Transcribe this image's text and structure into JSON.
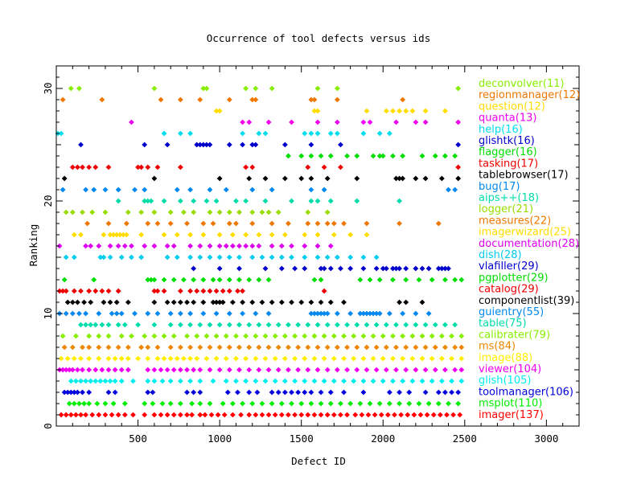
{
  "chart_data": {
    "type": "scatter",
    "title": "Occurrence of tool defects versus ids",
    "xlabel": "Defect ID",
    "ylabel": "Ranking",
    "xlim": [
      0,
      3200
    ],
    "ylim": [
      0,
      32
    ],
    "x_ticks": [
      500,
      1000,
      1500,
      2000,
      2500,
      3000
    ],
    "y_ticks": [
      0,
      10,
      20,
      30
    ],
    "legend_position": "right",
    "series": [
      {
        "name": "imager(137)",
        "rank": 1,
        "color": "#ff0000",
        "x": [
          30,
          60,
          90,
          120,
          150,
          180,
          220,
          260,
          300,
          340,
          380,
          420,
          470,
          540,
          600,
          640,
          680,
          720,
          760,
          800,
          830,
          880,
          910,
          950,
          990,
          1030,
          1080,
          1130,
          1180,
          1220,
          1260,
          1300,
          1340,
          1380,
          1420,
          1460,
          1500,
          1540,
          1580,
          1620,
          1660,
          1700,
          1740,
          1780,
          1830,
          1870,
          1910,
          1950,
          1990,
          2030,
          2070,
          2110,
          2150,
          2190,
          2230,
          2270,
          2310,
          2350,
          2390,
          2430,
          2470
        ]
      },
      {
        "name": "msplot(110)",
        "rank": 2,
        "color": "#00ee00",
        "x": [
          80,
          110,
          140,
          170,
          200,
          250,
          300,
          350,
          420,
          540,
          590,
          650,
          700,
          760,
          830,
          880,
          940,
          1020,
          1080,
          1140,
          1200,
          1260,
          1320,
          1380,
          1440,
          1500,
          1560,
          1620,
          1680,
          1740,
          1800,
          1860,
          1920,
          1980,
          2040,
          2100,
          2160,
          2220,
          2280,
          2340,
          2400,
          2460
        ]
      },
      {
        "name": "toolmanager(106)",
        "rank": 3,
        "color": "#0000dd",
        "x": [
          50,
          70,
          90,
          110,
          130,
          160,
          200,
          320,
          360,
          560,
          590,
          800,
          840,
          880,
          1050,
          1110,
          1180,
          1230,
          1320,
          1360,
          1400,
          1440,
          1480,
          1520,
          1560,
          1620,
          1680,
          1760,
          1880,
          2040,
          2100,
          2160,
          2260,
          2340,
          2380,
          2420,
          2460
        ]
      },
      {
        "name": "glish(105)",
        "rank": 4,
        "color": "#00eeee",
        "x": [
          90,
          120,
          150,
          180,
          210,
          240,
          270,
          300,
          330,
          360,
          400,
          470,
          560,
          600,
          650,
          700,
          760,
          820,
          880,
          960,
          1040,
          1100,
          1160,
          1220,
          1280,
          1340,
          1400,
          1460,
          1520,
          1580,
          1640,
          1700,
          1760,
          1820,
          1880,
          1940,
          2000,
          2060,
          2120,
          2180,
          2240,
          2300,
          2360,
          2420,
          2480
        ]
      },
      {
        "name": "viewer(104)",
        "rank": 5,
        "color": "#ee00ee",
        "x": [
          20,
          40,
          60,
          80,
          100,
          130,
          160,
          200,
          240,
          280,
          320,
          360,
          400,
          440,
          560,
          600,
          640,
          680,
          720,
          760,
          800,
          840,
          880,
          940,
          1000,
          1060,
          1120,
          1180,
          1240,
          1300,
          1360,
          1420,
          1480,
          1540,
          1600,
          1660,
          1720,
          1780,
          1840,
          1900,
          1960,
          2020,
          2080,
          2140,
          2200,
          2260,
          2320,
          2380,
          2440,
          2480
        ]
      },
      {
        "name": "image(88)",
        "rank": 6,
        "color": "#ffee00",
        "x": [
          30,
          70,
          110,
          150,
          200,
          260,
          320,
          360,
          400,
          440,
          500,
          560,
          620,
          660,
          700,
          740,
          780,
          820,
          860,
          920,
          980,
          1040,
          1100,
          1160,
          1220,
          1280,
          1340,
          1400,
          1460,
          1520,
          1580,
          1640,
          1700,
          1760,
          1820,
          1880,
          1940,
          2000,
          2060,
          2120,
          2180,
          2240,
          2300,
          2360,
          2420,
          2480
        ]
      },
      {
        "name": "ms(84)",
        "rank": 7,
        "color": "#ee8800",
        "x": [
          50,
          100,
          160,
          200,
          260,
          320,
          380,
          440,
          520,
          560,
          620,
          700,
          760,
          820,
          880,
          940,
          1000,
          1060,
          1120,
          1180,
          1240,
          1300,
          1360,
          1420,
          1480,
          1540,
          1600,
          1660,
          1720,
          1780,
          1840,
          1900,
          1960,
          2020,
          2080,
          2140,
          2200,
          2260,
          2320,
          2380,
          2440,
          2480
        ]
      },
      {
        "name": "calibrater(79)",
        "rank": 8,
        "color": "#88ee00",
        "x": [
          40,
          120,
          200,
          260,
          320,
          400,
          460,
          540,
          600,
          660,
          720,
          800,
          860,
          920,
          980,
          1040,
          1100,
          1160,
          1220,
          1280,
          1340,
          1400,
          1460,
          1520,
          1580,
          1640,
          1700,
          1760,
          1820,
          1880,
          1940,
          2000,
          2060,
          2120,
          2180,
          2240,
          2300,
          2360,
          2420,
          2480
        ]
      },
      {
        "name": "table(75)",
        "rank": 9,
        "color": "#00ddaa",
        "x": [
          150,
          180,
          210,
          240,
          280,
          320,
          380,
          420,
          500,
          600,
          700,
          760,
          820,
          880,
          940,
          1000,
          1060,
          1120,
          1180,
          1240,
          1300,
          1360,
          1420,
          1480,
          1540,
          1600,
          1660,
          1720,
          1780,
          1840,
          1900,
          1960,
          2020,
          2080,
          2140,
          2200,
          2260,
          2320,
          2380,
          2440
        ]
      },
      {
        "name": "guientry(55)",
        "rank": 10,
        "color": "#0088ee",
        "x": [
          20,
          60,
          100,
          140,
          180,
          260,
          340,
          370,
          400,
          480,
          560,
          620,
          700,
          760,
          820,
          900,
          980,
          1060,
          1140,
          1220,
          1300,
          1560,
          1580,
          1600,
          1620,
          1640,
          1660,
          1720,
          1800,
          1860,
          1880,
          1900,
          1920,
          1940,
          1960,
          1980,
          2040,
          2120,
          2200,
          2280
        ]
      },
      {
        "name": "componentlist(39)",
        "rank": 11,
        "color": "#000000",
        "x": [
          70,
          100,
          130,
          170,
          210,
          290,
          330,
          370,
          440,
          600,
          680,
          720,
          760,
          800,
          840,
          900,
          960,
          980,
          1000,
          1020,
          1080,
          1140,
          1200,
          1260,
          1320,
          1380,
          1440,
          1500,
          1560,
          1620,
          1680,
          1760,
          2100,
          2140,
          2240
        ]
      },
      {
        "name": "catalog(29)",
        "rank": 12,
        "color": "#ee0000",
        "x": [
          20,
          40,
          60,
          110,
          150,
          200,
          240,
          280,
          320,
          380,
          600,
          620,
          660,
          760,
          820,
          860,
          900,
          940,
          980,
          1020,
          1060,
          1110,
          1140,
          1640
        ]
      },
      {
        "name": "pgplotter(29)",
        "rank": 13,
        "color": "#00dd00",
        "x": [
          50,
          230,
          560,
          580,
          600,
          660,
          720,
          780,
          840,
          900,
          960,
          1000,
          1060,
          1120,
          1180,
          1240,
          1300,
          1580,
          1620,
          1860,
          1920,
          1980,
          2060,
          2140,
          2220,
          2300,
          2380,
          2440,
          2480
        ]
      },
      {
        "name": "vlafiller(29)",
        "rank": 14,
        "color": "#0000cc",
        "x": [
          840,
          1000,
          1120,
          1280,
          1380,
          1460,
          1520,
          1620,
          1640,
          1680,
          1740,
          1800,
          1880,
          1960,
          2000,
          2020,
          2060,
          2080,
          2100,
          2140,
          2200,
          2240,
          2280,
          2340,
          2360,
          2380,
          2400
        ]
      },
      {
        "name": "dish(28)",
        "rank": 15,
        "color": "#00ccee",
        "x": [
          60,
          110,
          270,
          290,
          330,
          400,
          460,
          520,
          680,
          740,
          820,
          880,
          940,
          1000,
          1060,
          1120,
          1200,
          1260,
          1320,
          1380,
          1440,
          1520,
          1600,
          1660,
          1720,
          1800,
          1880,
          1960
        ]
      },
      {
        "name": "documentation(28)",
        "rank": 16,
        "color": "#dd00ee",
        "x": [
          20,
          180,
          210,
          260,
          330,
          380,
          420,
          460,
          540,
          600,
          680,
          720,
          820,
          880,
          940,
          1000,
          1040,
          1080,
          1120,
          1160,
          1200,
          1240,
          1320,
          1380,
          1440,
          1520,
          1600,
          1680
        ]
      },
      {
        "name": "imagerwizard(25)",
        "rank": 17,
        "color": "#ffdd00",
        "x": [
          110,
          150,
          290,
          330,
          350,
          370,
          390,
          410,
          430,
          520,
          660,
          740,
          820,
          900,
          1000,
          1080,
          1160,
          1240,
          1320,
          1400,
          1520,
          1600,
          1700,
          1800,
          1900
        ]
      },
      {
        "name": "measures(22)",
        "rank": 18,
        "color": "#ee7700",
        "x": [
          190,
          320,
          430,
          560,
          620,
          700,
          800,
          900,
          960,
          1060,
          1100,
          1200,
          1320,
          1420,
          1540,
          1600,
          1660,
          1700,
          1760,
          1900,
          2100,
          2340
        ]
      },
      {
        "name": "logger(21)",
        "rank": 19,
        "color": "#99dd00",
        "x": [
          60,
          100,
          160,
          220,
          300,
          440,
          520,
          600,
          700,
          780,
          840,
          940,
          1000,
          1060,
          1120,
          1200,
          1260,
          1300,
          1360,
          1540,
          1660
        ]
      },
      {
        "name": "aips++(18)",
        "rank": 20,
        "color": "#00ddaa",
        "x": [
          380,
          540,
          560,
          580,
          660,
          760,
          840,
          920,
          980,
          1100,
          1160,
          1280,
          1440,
          1560,
          1600,
          1680,
          1840,
          2100
        ]
      },
      {
        "name": "bug(17)",
        "rank": 21,
        "color": "#0088ee",
        "x": [
          40,
          180,
          230,
          300,
          380,
          480,
          540,
          740,
          820,
          940,
          1040,
          1200,
          1320,
          1560,
          1640,
          2400,
          2440
        ]
      },
      {
        "name": "tablebrowser(17)",
        "rank": 22,
        "color": "#000000",
        "x": [
          50,
          600,
          1000,
          1180,
          1280,
          1400,
          1500,
          1560,
          1660,
          1840,
          2080,
          2100,
          2120,
          2200,
          2260,
          2360,
          2460
        ]
      },
      {
        "name": "tasking(17)",
        "rank": 23,
        "color": "#ee0000",
        "x": [
          100,
          130,
          160,
          200,
          240,
          320,
          500,
          520,
          560,
          620,
          760,
          1160,
          1200,
          1540,
          1640,
          1740,
          2460
        ]
      },
      {
        "name": "flagger(16)",
        "rank": 24,
        "color": "#00dd00",
        "x": [
          1420,
          1500,
          1560,
          1620,
          1680,
          1780,
          1840,
          1940,
          1980,
          2000,
          2060,
          2120,
          2240,
          2320,
          2380,
          2440
        ]
      },
      {
        "name": "glishtk(16)",
        "rank": 25,
        "color": "#0000cc",
        "x": [
          150,
          540,
          680,
          860,
          880,
          900,
          920,
          940,
          1060,
          1140,
          1200,
          1220,
          1400,
          1560,
          1740,
          2460
        ]
      },
      {
        "name": "help(16)",
        "rank": 26,
        "color": "#00ddee",
        "x": [
          10,
          30,
          660,
          760,
          820,
          1140,
          1240,
          1280,
          1520,
          1560,
          1600,
          1680,
          1720,
          1880,
          1980,
          2040
        ]
      },
      {
        "name": "quanta(13)",
        "rank": 27,
        "color": "#ee00ee",
        "x": [
          460,
          1140,
          1180,
          1300,
          1440,
          1600,
          1720,
          1880,
          1920,
          2080,
          2200,
          2260,
          2460
        ]
      },
      {
        "name": "question(12)",
        "rank": 28,
        "color": "#ffdd00",
        "x": [
          980,
          1000,
          1580,
          1600,
          1900,
          2020,
          2060,
          2100,
          2140,
          2180,
          2260,
          2380
        ]
      },
      {
        "name": "regionmanager(12)",
        "rank": 29,
        "color": "#ee7700",
        "x": [
          40,
          280,
          640,
          760,
          880,
          1060,
          1200,
          1220,
          1560,
          1580,
          1720,
          2120
        ]
      },
      {
        "name": "deconvolver(11)",
        "rank": 30,
        "color": "#88ee00",
        "x": [
          90,
          140,
          600,
          900,
          920,
          1160,
          1220,
          1320,
          1600,
          1720,
          2460
        ]
      }
    ]
  }
}
